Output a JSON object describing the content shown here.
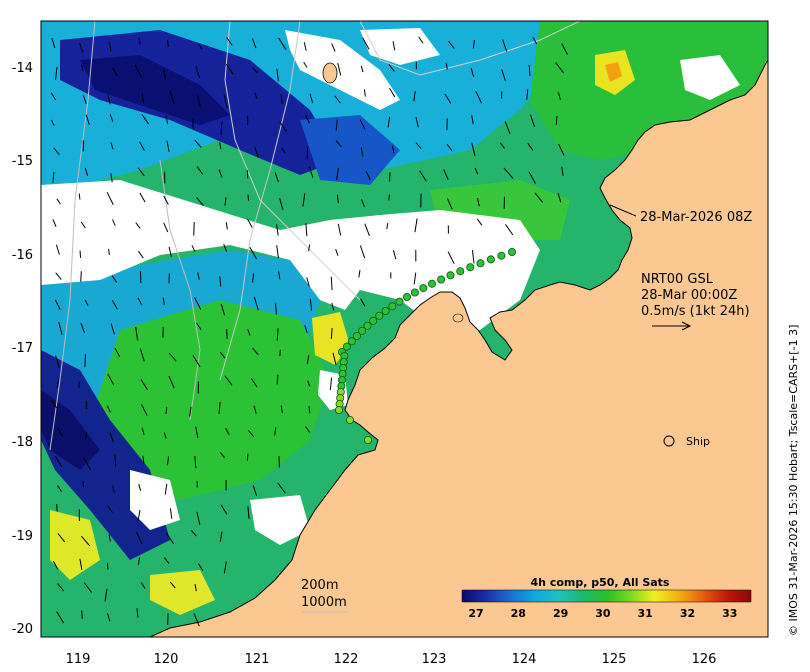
{
  "map": {
    "x_ticks": [
      "119",
      "120",
      "121",
      "122",
      "123",
      "124",
      "125",
      "126"
    ],
    "y_ticks": [
      "-14",
      "-15",
      "-16",
      "-17",
      "-18",
      "-19",
      "-20"
    ],
    "colors": {
      "land": "#fcc892",
      "cloud": "#ffffff",
      "coastline": "#000000",
      "isobath": "#bdbdbd"
    }
  },
  "annotations": {
    "track_time": "28-Mar-2026 08Z",
    "current_ref_line1": "NRT00 GSL",
    "current_ref_line2": "28-Mar 00:00Z",
    "current_ref_line3": "0.5m/s (1kt 24h)",
    "ship_label": "Ship",
    "isobath_200": "200m",
    "isobath_1000": "1000m",
    "credit": "© IMOS 31-Mar-2026 15:30 Hobart; Tscale=CARS+[-1 3]"
  },
  "colorbar": {
    "title": "4h comp, p50, All Sats",
    "ticks": [
      "27",
      "28",
      "29",
      "30",
      "31",
      "32",
      "33"
    ],
    "stops": [
      "#08086a",
      "#1c2fa8",
      "#1a6fd0",
      "#10a8e0",
      "#20c0c0",
      "#20b870",
      "#28c028",
      "#7ad820",
      "#f0f020",
      "#f0b010",
      "#e86010",
      "#c01808",
      "#8a0805"
    ]
  }
}
